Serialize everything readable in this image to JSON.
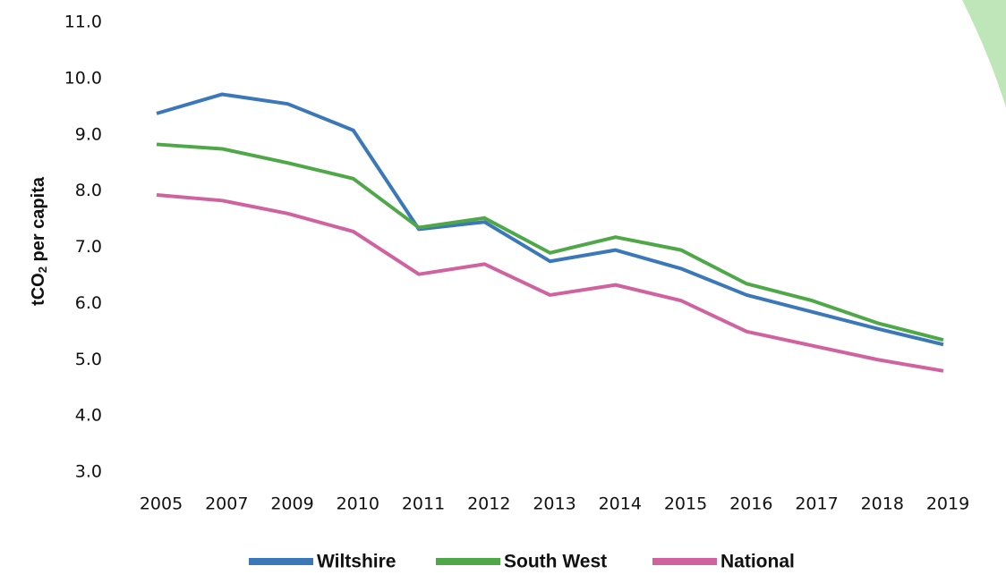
{
  "chart_data": {
    "type": "line",
    "y_label": {
      "main": "tCO",
      "sub": "2",
      "rest": " per capita"
    },
    "categories": [
      "2005",
      "2007",
      "2009",
      "2010",
      "2011",
      "2012",
      "2013",
      "2014",
      "2015",
      "2016",
      "2017",
      "2018",
      "2019"
    ],
    "series": [
      {
        "name": "Wiltshire",
        "color": "#3b78b9",
        "values": [
          9.38,
          9.72,
          9.55,
          9.08,
          7.32,
          7.45,
          6.75,
          6.95,
          6.62,
          6.15,
          5.85,
          5.55,
          5.27
        ]
      },
      {
        "name": "South West",
        "color": "#4fa847",
        "values": [
          8.83,
          8.75,
          8.5,
          8.22,
          7.35,
          7.52,
          6.9,
          7.18,
          6.95,
          6.35,
          6.05,
          5.65,
          5.35
        ]
      },
      {
        "name": "National",
        "color": "#d062a0",
        "values": [
          7.93,
          7.83,
          7.6,
          7.28,
          6.52,
          6.7,
          6.15,
          6.33,
          6.05,
          5.5,
          5.25,
          5.0,
          4.8
        ]
      }
    ],
    "ylim": [
      3.0,
      11.0
    ],
    "yticks": [
      {
        "value": 3,
        "label": "3.0"
      },
      {
        "value": 4,
        "label": "4.0"
      },
      {
        "value": 5,
        "label": "5.0"
      },
      {
        "value": 6,
        "label": "6.0"
      },
      {
        "value": 7,
        "label": "7.0"
      },
      {
        "value": 8,
        "label": "8.0"
      },
      {
        "value": 9,
        "label": "9.0"
      },
      {
        "value": 10,
        "label": "10.0"
      },
      {
        "value": 11,
        "label": "11.0"
      }
    ],
    "grid": false,
    "legend": "bottom"
  }
}
